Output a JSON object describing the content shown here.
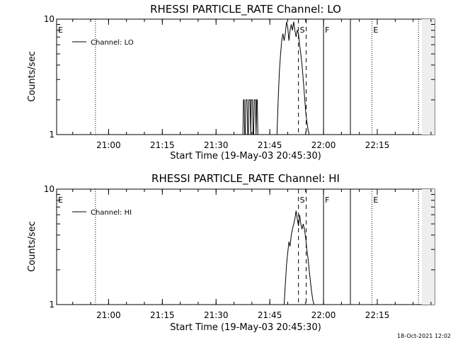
{
  "footer": {
    "timestamp": "18-Oct-2021 12:02"
  },
  "chart_data": [
    {
      "type": "line",
      "title": "RHESSI PARTICLE_RATE Channel: LO",
      "xlabel": "Start Time (19-May-03 20:45:30)",
      "ylabel": "Counts/sec",
      "yscale": "log",
      "ylim": [
        1,
        10
      ],
      "xlim": [
        "20:45:30",
        "22:31:00"
      ],
      "yticks": [
        "1",
        "10"
      ],
      "xticks": [
        "21:00",
        "21:15",
        "21:30",
        "21:45",
        "22:00",
        "22:15"
      ],
      "grid": false,
      "legend": {
        "placement": "top-left",
        "entries": [
          "Channel: LO"
        ]
      },
      "series": [
        {
          "name": "Channel: LO",
          "color": "#000000",
          "x": [
            "21:37:30",
            "21:37:40",
            "21:37:50",
            "21:38:00",
            "21:38:10",
            "21:38:20",
            "21:38:30",
            "21:38:40",
            "21:38:50",
            "21:39:00",
            "21:39:10",
            "21:39:20",
            "21:39:30",
            "21:39:40",
            "21:39:50",
            "21:40:00",
            "21:40:10",
            "21:40:20",
            "21:40:30",
            "21:40:40",
            "21:40:50",
            "21:41:00",
            "21:41:10",
            "21:41:20",
            "21:41:30",
            "21:41:40",
            "21:41:50",
            "21:47:00",
            "21:47:20",
            "21:47:40",
            "21:48:00",
            "21:48:20",
            "21:48:40",
            "21:49:00",
            "21:49:20",
            "21:49:40",
            "21:50:00",
            "21:50:20",
            "21:50:40",
            "21:51:00",
            "21:51:20",
            "21:51:40",
            "21:52:00",
            "21:52:20",
            "21:52:40",
            "21:53:00",
            "21:53:20",
            "21:53:40",
            "21:54:00",
            "21:54:20",
            "21:54:40",
            "21:55:00",
            "21:55:20",
            "21:55:40",
            "21:56:00",
            "21:56:20"
          ],
          "y": [
            1,
            2,
            2,
            1,
            1,
            2,
            2,
            2,
            1,
            1,
            2,
            2,
            2,
            1,
            2,
            2,
            2,
            1,
            1,
            2,
            2,
            2,
            1,
            2,
            2,
            1,
            1,
            1,
            2,
            3.5,
            5,
            6.5,
            7.5,
            6.5,
            7.5,
            9.5,
            8.5,
            6.5,
            8,
            9,
            8,
            9.5,
            8,
            7,
            8,
            7.5,
            6,
            5,
            4,
            3,
            2.2,
            1.6,
            1.3,
            1.1,
            1,
            1
          ]
        }
      ],
      "markers": [
        {
          "label": "E",
          "time": "20:45:30",
          "style": "solid"
        },
        {
          "label": "",
          "time": "20:56:20",
          "style": "dotted"
        },
        {
          "label": "S",
          "time": "21:53:00",
          "style": "dashed"
        },
        {
          "label": "",
          "time": "21:55:10",
          "style": "dashed"
        },
        {
          "label": "F",
          "time": "22:00:00",
          "style": "solid"
        },
        {
          "label": "",
          "time": "22:07:30",
          "style": "solid"
        },
        {
          "label": "E",
          "time": "22:13:30",
          "style": "dotted"
        },
        {
          "label": "",
          "time": "22:26:30",
          "style": "dotted"
        }
      ]
    },
    {
      "type": "line",
      "title": "RHESSI PARTICLE_RATE Channel: HI",
      "xlabel": "Start Time (19-May-03 20:45:30)",
      "ylabel": "Counts/sec",
      "yscale": "log",
      "ylim": [
        1,
        10
      ],
      "xlim": [
        "20:45:30",
        "22:31:00"
      ],
      "yticks": [
        "1",
        "10"
      ],
      "xticks": [
        "21:00",
        "21:15",
        "21:30",
        "21:45",
        "22:00",
        "22:15"
      ],
      "grid": false,
      "legend": {
        "placement": "top-left",
        "entries": [
          "Channel: HI"
        ]
      },
      "series": [
        {
          "name": "Channel: HI",
          "color": "#000000",
          "x": [
            "21:49:00",
            "21:49:20",
            "21:49:40",
            "21:50:00",
            "21:50:20",
            "21:50:40",
            "21:51:00",
            "21:51:20",
            "21:51:40",
            "21:52:00",
            "21:52:20",
            "21:52:40",
            "21:53:00",
            "21:53:20",
            "21:53:40",
            "21:54:00",
            "21:54:20",
            "21:54:40",
            "21:55:00",
            "21:55:20",
            "21:55:40",
            "21:56:00",
            "21:56:20",
            "21:56:40",
            "21:57:00",
            "21:57:20"
          ],
          "y": [
            1,
            1.5,
            2.2,
            2.8,
            3.5,
            3.2,
            4,
            4.5,
            5,
            5.5,
            6.5,
            5.5,
            4.8,
            6,
            5,
            4.5,
            5,
            4.5,
            3.8,
            3,
            2.5,
            2,
            1.6,
            1.3,
            1.1,
            1
          ]
        }
      ],
      "markers": [
        {
          "label": "E",
          "time": "20:45:30",
          "style": "solid"
        },
        {
          "label": "",
          "time": "20:56:20",
          "style": "dotted"
        },
        {
          "label": "S",
          "time": "21:53:00",
          "style": "dashed"
        },
        {
          "label": "",
          "time": "21:55:10",
          "style": "dashed"
        },
        {
          "label": "F",
          "time": "22:00:00",
          "style": "solid"
        },
        {
          "label": "",
          "time": "22:07:30",
          "style": "solid"
        },
        {
          "label": "E",
          "time": "22:13:30",
          "style": "dotted"
        },
        {
          "label": "",
          "time": "22:26:30",
          "style": "dotted"
        }
      ]
    }
  ]
}
